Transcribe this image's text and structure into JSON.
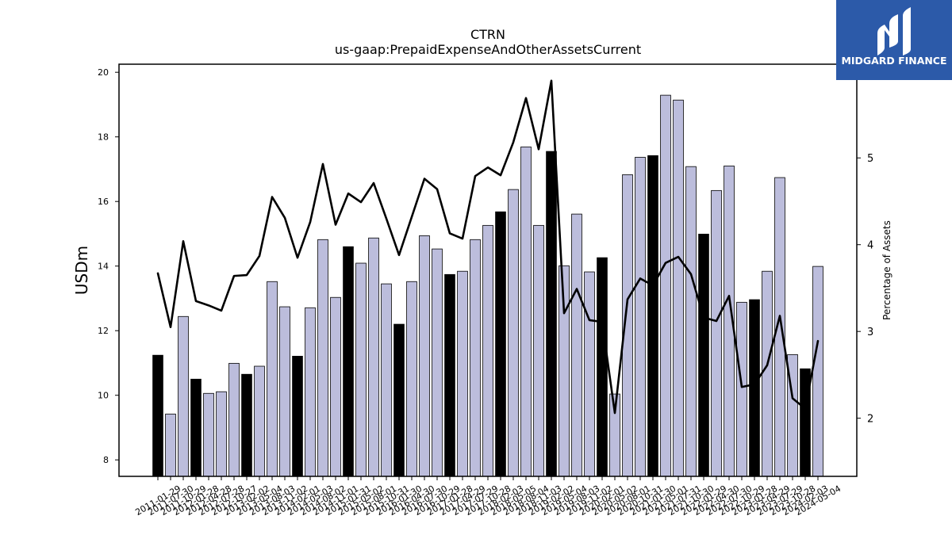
{
  "chart_data": {
    "type": "bar",
    "title": "CTRN",
    "subtitle": "us-gaap:PrepaidExpenseAndOtherAssetsCurrent",
    "ylabel": "USDm",
    "y2label": "Percentage of Assets",
    "categories": [
      "2011-01-29",
      "2011-07-30",
      "2011-10-29",
      "2012-01-28",
      "2012-04-28",
      "2012-07-28",
      "2012-10-27",
      "2013-02-02",
      "2013-05-04",
      "2013-08-03",
      "2013-11-02",
      "2014-02-01",
      "2014-05-03",
      "2014-08-02",
      "2014-11-01",
      "2015-01-31",
      "2015-05-02",
      "2015-08-01",
      "2015-10-31",
      "2016-01-30",
      "2016-04-30",
      "2016-07-30",
      "2016-10-29",
      "2017-01-28",
      "2017-04-29",
      "2017-07-29",
      "2017-10-28",
      "2018-02-03",
      "2018-05-05",
      "2018-08-04",
      "2018-11-03",
      "2019-02-02",
      "2019-05-04",
      "2019-08-03",
      "2019-11-02",
      "2020-02-01",
      "2020-05-02",
      "2020-08-01",
      "2020-10-31",
      "2021-01-30",
      "2021-05-01",
      "2021-07-31",
      "2021-10-30",
      "2022-01-29",
      "2022-04-30",
      "2022-07-30",
      "2022-10-29",
      "2023-01-28",
      "2023-04-29",
      "2023-07-29",
      "2023-10-28",
      "2024-02-03",
      "2024-05-04"
    ],
    "series": [
      {
        "type": "bar",
        "axis": "left",
        "values": [
          11.24,
          9.42,
          12.44,
          10.5,
          10.06,
          10.11,
          10.99,
          10.65,
          10.9,
          13.52,
          12.74,
          11.21,
          12.71,
          14.82,
          13.03,
          14.6,
          14.09,
          14.87,
          13.45,
          12.2,
          13.52,
          14.94,
          14.53,
          13.74,
          13.84,
          14.82,
          15.26,
          15.68,
          16.37,
          17.69,
          15.26,
          17.55,
          14.01,
          15.61,
          13.82,
          14.26,
          10.04,
          16.83,
          17.37,
          17.42,
          19.29,
          19.14,
          17.08,
          14.99,
          16.34,
          17.1,
          12.88,
          12.96,
          13.84,
          16.74,
          11.26,
          10.82,
          13.99
        ],
        "colors": [
          "#000000",
          "#bcbddc",
          "#bcbddc",
          "#000000",
          "#bcbddc",
          "#bcbddc",
          "#bcbddc",
          "#000000",
          "#bcbddc",
          "#bcbddc",
          "#bcbddc",
          "#000000",
          "#bcbddc",
          "#bcbddc",
          "#bcbddc",
          "#000000",
          "#bcbddc",
          "#bcbddc",
          "#bcbddc",
          "#000000",
          "#bcbddc",
          "#bcbddc",
          "#bcbddc",
          "#000000",
          "#bcbddc",
          "#bcbddc",
          "#bcbddc",
          "#000000",
          "#bcbddc",
          "#bcbddc",
          "#bcbddc",
          "#000000",
          "#bcbddc",
          "#bcbddc",
          "#bcbddc",
          "#000000",
          "#bcbddc",
          "#bcbddc",
          "#bcbddc",
          "#000000",
          "#bcbddc",
          "#bcbddc",
          "#bcbddc",
          "#000000",
          "#bcbddc",
          "#bcbddc",
          "#bcbddc",
          "#000000",
          "#bcbddc",
          "#bcbddc",
          "#bcbddc",
          "#000000",
          "#bcbddc"
        ]
      },
      {
        "type": "line",
        "axis": "right",
        "color": "#000000",
        "values": [
          3.67,
          3.05,
          4.04,
          3.35,
          3.3,
          3.24,
          3.64,
          3.65,
          3.87,
          4.55,
          4.31,
          3.85,
          4.26,
          4.93,
          4.23,
          4.59,
          4.49,
          4.71,
          4.3,
          3.88,
          4.32,
          4.76,
          4.64,
          4.13,
          4.07,
          4.79,
          4.89,
          4.8,
          5.18,
          5.69,
          5.1,
          5.89,
          3.21,
          3.49,
          3.13,
          3.11,
          2.06,
          3.37,
          3.61,
          3.53,
          3.79,
          3.86,
          3.66,
          3.16,
          3.12,
          3.41,
          2.36,
          2.39,
          2.61,
          3.18,
          2.23,
          2.11,
          2.89
        ]
      }
    ],
    "ylim": [
      7.49,
      20.25
    ],
    "y2lim": [
      1.33,
      6.08
    ],
    "yticks": [
      8,
      10,
      12,
      14,
      16,
      18,
      20
    ],
    "y2ticks": [
      2,
      3,
      4,
      5
    ],
    "grid": false,
    "legend": "none"
  },
  "branding": {
    "logo_text": "MIDGARD FINANCE",
    "background": "#2c5aa9",
    "icon": "midgard-logo-icon"
  }
}
